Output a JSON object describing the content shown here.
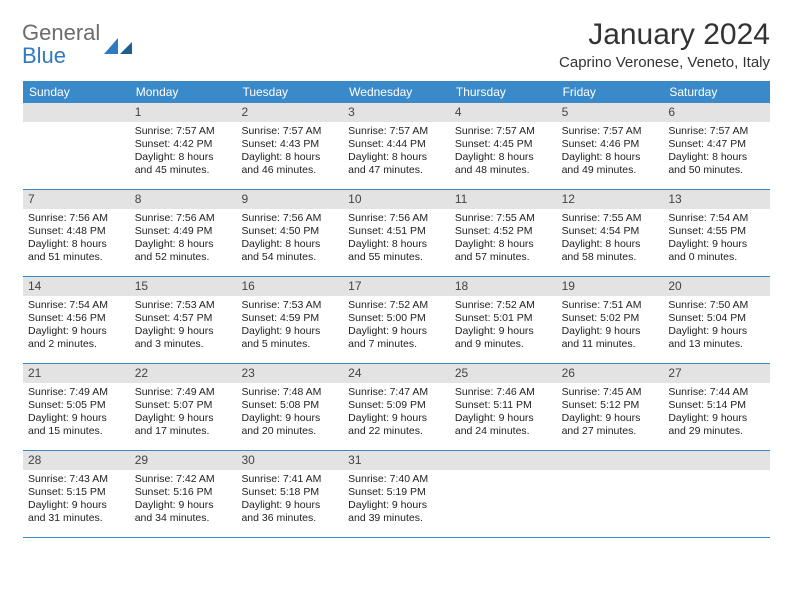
{
  "brand": {
    "part1": "General",
    "part2": "Blue"
  },
  "title": "January 2024",
  "location": "Caprino Veronese, Veneto, Italy",
  "colors": {
    "header_bg": "#3a8ac9",
    "daynum_bg": "#e3e3e3",
    "rule": "#3a8ac9",
    "logo_gray": "#6c6c6c",
    "logo_blue": "#2f7bbf"
  },
  "dows": [
    "Sunday",
    "Monday",
    "Tuesday",
    "Wednesday",
    "Thursday",
    "Friday",
    "Saturday"
  ],
  "weeks": [
    [
      null,
      {
        "n": "1",
        "sr": "Sunrise: 7:57 AM",
        "ss": "Sunset: 4:42 PM",
        "d1": "Daylight: 8 hours",
        "d2": "and 45 minutes."
      },
      {
        "n": "2",
        "sr": "Sunrise: 7:57 AM",
        "ss": "Sunset: 4:43 PM",
        "d1": "Daylight: 8 hours",
        "d2": "and 46 minutes."
      },
      {
        "n": "3",
        "sr": "Sunrise: 7:57 AM",
        "ss": "Sunset: 4:44 PM",
        "d1": "Daylight: 8 hours",
        "d2": "and 47 minutes."
      },
      {
        "n": "4",
        "sr": "Sunrise: 7:57 AM",
        "ss": "Sunset: 4:45 PM",
        "d1": "Daylight: 8 hours",
        "d2": "and 48 minutes."
      },
      {
        "n": "5",
        "sr": "Sunrise: 7:57 AM",
        "ss": "Sunset: 4:46 PM",
        "d1": "Daylight: 8 hours",
        "d2": "and 49 minutes."
      },
      {
        "n": "6",
        "sr": "Sunrise: 7:57 AM",
        "ss": "Sunset: 4:47 PM",
        "d1": "Daylight: 8 hours",
        "d2": "and 50 minutes."
      }
    ],
    [
      {
        "n": "7",
        "sr": "Sunrise: 7:56 AM",
        "ss": "Sunset: 4:48 PM",
        "d1": "Daylight: 8 hours",
        "d2": "and 51 minutes."
      },
      {
        "n": "8",
        "sr": "Sunrise: 7:56 AM",
        "ss": "Sunset: 4:49 PM",
        "d1": "Daylight: 8 hours",
        "d2": "and 52 minutes."
      },
      {
        "n": "9",
        "sr": "Sunrise: 7:56 AM",
        "ss": "Sunset: 4:50 PM",
        "d1": "Daylight: 8 hours",
        "d2": "and 54 minutes."
      },
      {
        "n": "10",
        "sr": "Sunrise: 7:56 AM",
        "ss": "Sunset: 4:51 PM",
        "d1": "Daylight: 8 hours",
        "d2": "and 55 minutes."
      },
      {
        "n": "11",
        "sr": "Sunrise: 7:55 AM",
        "ss": "Sunset: 4:52 PM",
        "d1": "Daylight: 8 hours",
        "d2": "and 57 minutes."
      },
      {
        "n": "12",
        "sr": "Sunrise: 7:55 AM",
        "ss": "Sunset: 4:54 PM",
        "d1": "Daylight: 8 hours",
        "d2": "and 58 minutes."
      },
      {
        "n": "13",
        "sr": "Sunrise: 7:54 AM",
        "ss": "Sunset: 4:55 PM",
        "d1": "Daylight: 9 hours",
        "d2": "and 0 minutes."
      }
    ],
    [
      {
        "n": "14",
        "sr": "Sunrise: 7:54 AM",
        "ss": "Sunset: 4:56 PM",
        "d1": "Daylight: 9 hours",
        "d2": "and 2 minutes."
      },
      {
        "n": "15",
        "sr": "Sunrise: 7:53 AM",
        "ss": "Sunset: 4:57 PM",
        "d1": "Daylight: 9 hours",
        "d2": "and 3 minutes."
      },
      {
        "n": "16",
        "sr": "Sunrise: 7:53 AM",
        "ss": "Sunset: 4:59 PM",
        "d1": "Daylight: 9 hours",
        "d2": "and 5 minutes."
      },
      {
        "n": "17",
        "sr": "Sunrise: 7:52 AM",
        "ss": "Sunset: 5:00 PM",
        "d1": "Daylight: 9 hours",
        "d2": "and 7 minutes."
      },
      {
        "n": "18",
        "sr": "Sunrise: 7:52 AM",
        "ss": "Sunset: 5:01 PM",
        "d1": "Daylight: 9 hours",
        "d2": "and 9 minutes."
      },
      {
        "n": "19",
        "sr": "Sunrise: 7:51 AM",
        "ss": "Sunset: 5:02 PM",
        "d1": "Daylight: 9 hours",
        "d2": "and 11 minutes."
      },
      {
        "n": "20",
        "sr": "Sunrise: 7:50 AM",
        "ss": "Sunset: 5:04 PM",
        "d1": "Daylight: 9 hours",
        "d2": "and 13 minutes."
      }
    ],
    [
      {
        "n": "21",
        "sr": "Sunrise: 7:49 AM",
        "ss": "Sunset: 5:05 PM",
        "d1": "Daylight: 9 hours",
        "d2": "and 15 minutes."
      },
      {
        "n": "22",
        "sr": "Sunrise: 7:49 AM",
        "ss": "Sunset: 5:07 PM",
        "d1": "Daylight: 9 hours",
        "d2": "and 17 minutes."
      },
      {
        "n": "23",
        "sr": "Sunrise: 7:48 AM",
        "ss": "Sunset: 5:08 PM",
        "d1": "Daylight: 9 hours",
        "d2": "and 20 minutes."
      },
      {
        "n": "24",
        "sr": "Sunrise: 7:47 AM",
        "ss": "Sunset: 5:09 PM",
        "d1": "Daylight: 9 hours",
        "d2": "and 22 minutes."
      },
      {
        "n": "25",
        "sr": "Sunrise: 7:46 AM",
        "ss": "Sunset: 5:11 PM",
        "d1": "Daylight: 9 hours",
        "d2": "and 24 minutes."
      },
      {
        "n": "26",
        "sr": "Sunrise: 7:45 AM",
        "ss": "Sunset: 5:12 PM",
        "d1": "Daylight: 9 hours",
        "d2": "and 27 minutes."
      },
      {
        "n": "27",
        "sr": "Sunrise: 7:44 AM",
        "ss": "Sunset: 5:14 PM",
        "d1": "Daylight: 9 hours",
        "d2": "and 29 minutes."
      }
    ],
    [
      {
        "n": "28",
        "sr": "Sunrise: 7:43 AM",
        "ss": "Sunset: 5:15 PM",
        "d1": "Daylight: 9 hours",
        "d2": "and 31 minutes."
      },
      {
        "n": "29",
        "sr": "Sunrise: 7:42 AM",
        "ss": "Sunset: 5:16 PM",
        "d1": "Daylight: 9 hours",
        "d2": "and 34 minutes."
      },
      {
        "n": "30",
        "sr": "Sunrise: 7:41 AM",
        "ss": "Sunset: 5:18 PM",
        "d1": "Daylight: 9 hours",
        "d2": "and 36 minutes."
      },
      {
        "n": "31",
        "sr": "Sunrise: 7:40 AM",
        "ss": "Sunset: 5:19 PM",
        "d1": "Daylight: 9 hours",
        "d2": "and 39 minutes."
      },
      null,
      null,
      null
    ]
  ]
}
